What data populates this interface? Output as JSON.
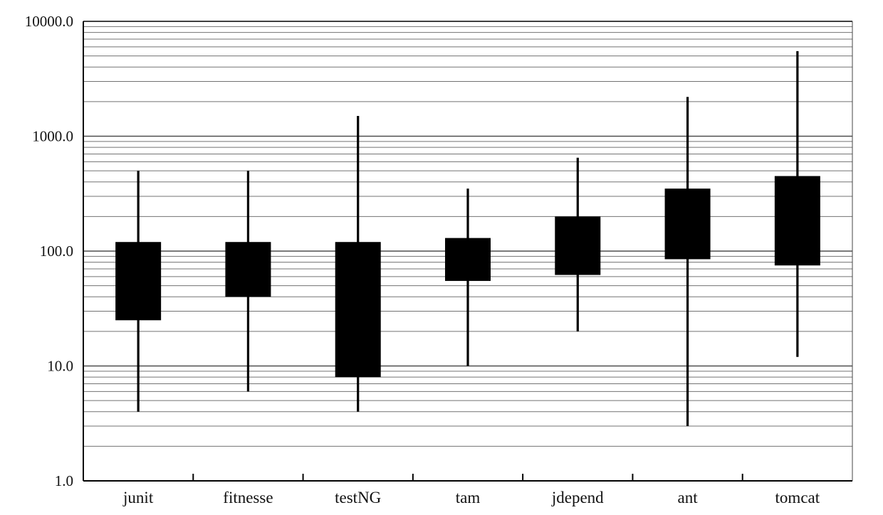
{
  "chart_data": {
    "type": "box",
    "title": "",
    "xlabel": "",
    "ylabel": "",
    "yscale": "log",
    "ylim": [
      1,
      10000
    ],
    "grid": true,
    "y_ticks": [
      "1.0",
      "10.0",
      "100.0",
      "1000.0",
      "10000.0"
    ],
    "categories": [
      "junit",
      "fitnesse",
      "testNG",
      "tam",
      "jdepend",
      "ant",
      "tomcat"
    ],
    "boxes": [
      {
        "category": "junit",
        "min": 4,
        "q1": 25,
        "q3": 120,
        "max": 500
      },
      {
        "category": "fitnesse",
        "min": 6,
        "q1": 40,
        "q3": 120,
        "max": 500
      },
      {
        "category": "testNG",
        "min": 4,
        "q1": 8,
        "q3": 120,
        "max": 1500
      },
      {
        "category": "tam",
        "min": 10,
        "q1": 55,
        "q3": 130,
        "max": 350
      },
      {
        "category": "jdepend",
        "min": 20,
        "q1": 62,
        "q3": 200,
        "max": 650
      },
      {
        "category": "ant",
        "min": 3,
        "q1": 85,
        "q3": 350,
        "max": 2200
      },
      {
        "category": "tomcat",
        "min": 12,
        "q1": 75,
        "q3": 450,
        "max": 5500
      }
    ],
    "colors": {
      "box": "#000000",
      "grid": "#444444",
      "axis": "#000000",
      "text": "#111111"
    }
  }
}
